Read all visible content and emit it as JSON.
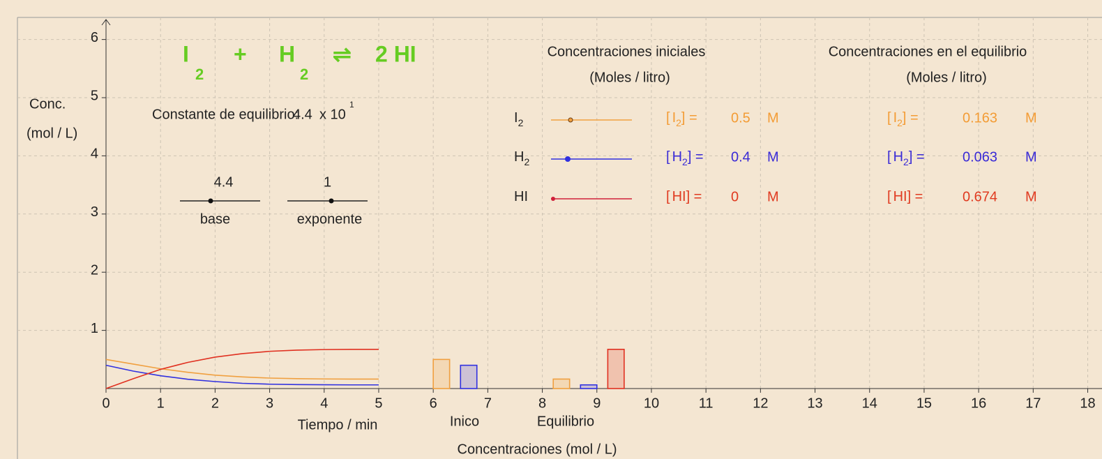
{
  "equation": {
    "r1": "I",
    "r1_sub": "2",
    "plus": "+",
    "r2": "H",
    "r2_sub": "2",
    "arrow": "⇌",
    "product": "2 HI"
  },
  "constant": {
    "label": "Constante de equilibrio:",
    "base": 4.4,
    "times": "x 10",
    "exponent": 1
  },
  "sliders": [
    {
      "value": 4.4,
      "label": "base"
    },
    {
      "value": 1,
      "label": "exponente"
    }
  ],
  "table": {
    "initial_title": "Concentraciones iniciales",
    "equilibrium_title": "Concentraciones en el equilibrio",
    "unit_title": "(Moles / litro)",
    "open": "[",
    "close": "] =",
    "unit": "M",
    "rows": [
      {
        "name": "I",
        "sub": "2",
        "color": "#f39c35",
        "line_color": "#f0a040",
        "initial": 0.5,
        "equilibrium": 0.163
      },
      {
        "name": "H",
        "sub": "2",
        "color": "#3a2bd6",
        "line_color": "#3030e0",
        "initial": 0.4,
        "equilibrium": 0.063
      },
      {
        "name": "HI",
        "sub": null,
        "color": "#e03a20",
        "line_color": "#d0203a",
        "initial": 0,
        "equilibrium": 0.674
      }
    ]
  },
  "chart_data": {
    "type": "line",
    "ylabel": [
      "Conc.",
      "(mol / L)"
    ],
    "xlabel": "Tiempo / min",
    "bar_labels": [
      "Inico",
      "Equilibrio"
    ],
    "bar_axis_label": "Concentraciones (mol / L)",
    "xlim": [
      0,
      18.3
    ],
    "ylim": [
      0,
      6.3
    ],
    "xticks": [
      0,
      1,
      2,
      3,
      4,
      5,
      6,
      7,
      8,
      9,
      10,
      11,
      12,
      13,
      14,
      15,
      16,
      17,
      18
    ],
    "yticks": [
      1,
      2,
      3,
      4,
      5,
      6
    ],
    "grid": true,
    "x": [
      0,
      0.5,
      1,
      1.5,
      2,
      2.5,
      3,
      3.5,
      4,
      4.5,
      5
    ],
    "series": [
      {
        "color": "#f0a040",
        "values": [
          0.5,
          0.42,
          0.34,
          0.28,
          0.23,
          0.2,
          0.18,
          0.17,
          0.165,
          0.163,
          0.163
        ]
      },
      {
        "color": "#3030e0",
        "values": [
          0.4,
          0.3,
          0.22,
          0.16,
          0.12,
          0.09,
          0.075,
          0.068,
          0.065,
          0.063,
          0.063
        ]
      },
      {
        "color": "#e03020",
        "values": [
          0,
          0.17,
          0.33,
          0.45,
          0.54,
          0.6,
          0.64,
          0.66,
          0.67,
          0.674,
          0.674
        ]
      }
    ],
    "bars": [
      {
        "x": [
          6,
          6.3
        ],
        "value": 0.5,
        "color": "#f0a040"
      },
      {
        "x": [
          6.5,
          6.8
        ],
        "value": 0.4,
        "color": "#3030e0"
      },
      {
        "x": [
          7,
          7.3
        ],
        "value": 0,
        "color": "#e03020"
      },
      {
        "x": [
          8.2,
          8.5
        ],
        "value": 0.163,
        "color": "#f0a040"
      },
      {
        "x": [
          8.7,
          9
        ],
        "value": 0.063,
        "color": "#3030e0"
      },
      {
        "x": [
          9.2,
          9.5
        ],
        "value": 0.674,
        "color": "#e03020"
      }
    ]
  }
}
